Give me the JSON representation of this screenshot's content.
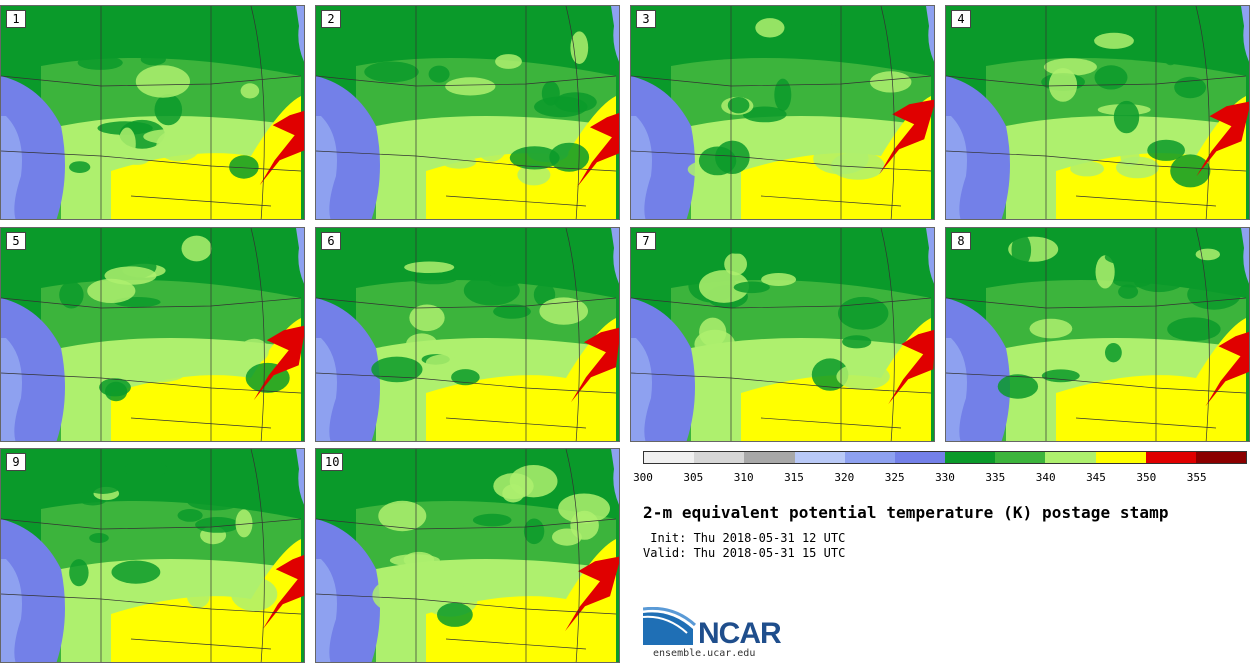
{
  "stamps": [
    {
      "label": "1"
    },
    {
      "label": "2"
    },
    {
      "label": "3"
    },
    {
      "label": "4"
    },
    {
      "label": "5"
    },
    {
      "label": "6"
    },
    {
      "label": "7"
    },
    {
      "label": "8"
    },
    {
      "label": "9"
    },
    {
      "label": "10"
    }
  ],
  "colorbar": {
    "ticks": [
      "300",
      "305",
      "310",
      "315",
      "320",
      "325",
      "330",
      "335",
      "340",
      "345",
      "350",
      "355"
    ],
    "colors": [
      "#f0f0f0",
      "#d6d6d6",
      "#a8a8a8",
      "#b9c9f7",
      "#8ea1f0",
      "#7380e8",
      "#0a9a2a",
      "#3cb43c",
      "#aef06e",
      "#ffff00",
      "#e00000",
      "#8b0000"
    ]
  },
  "title": "2-m equivalent potential temperature (K) postage stamp",
  "init": " Init: Thu 2018-05-31 12 UTC",
  "valid": "Valid: Thu 2018-05-31 15 UTC",
  "logo": {
    "text": "NCAR",
    "site": "ensemble.ucar.edu"
  }
}
